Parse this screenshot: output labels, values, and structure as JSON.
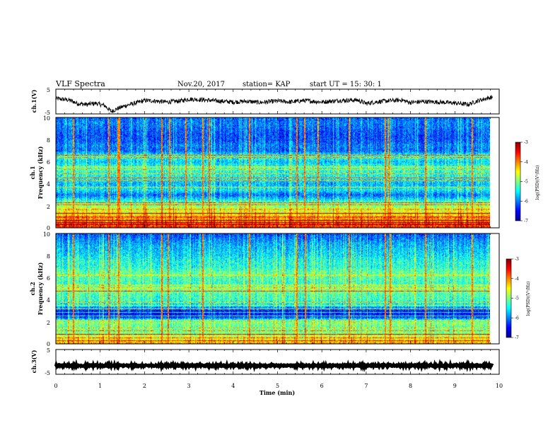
{
  "header": {
    "title": "VLF Spectra",
    "date": "Nov.20, 2017",
    "station": "station= KAP",
    "start": "start  UT  =   15: 30: 1"
  },
  "colorbar_ticks": [
    "-3",
    "-4",
    "-5",
    "-6",
    "-7"
  ],
  "colorbar_label_html": "log(PSD)(V<tspan baseline-shift='super' font-size='4'>2</tspan>/Hz)",
  "colors": {
    "background": "#ffffff",
    "trace": "#000000",
    "colormap": [
      "#00008f",
      "#0000ff",
      "#0080ff",
      "#00ffff",
      "#80ff80",
      "#ffff00",
      "#ff8000",
      "#ff0000",
      "#800000"
    ]
  },
  "chart_data": [
    {
      "id": "ch1-waveform",
      "type": "line",
      "ylabel": "ch.1(V)",
      "yticks": [
        "5",
        "-5"
      ],
      "ylim": [
        -5,
        5
      ],
      "xlim": [
        0,
        10
      ],
      "x_end": 9.85,
      "trend": [
        [
          0.0,
          1.2
        ],
        [
          0.3,
          0.6
        ],
        [
          0.5,
          -0.8
        ],
        [
          0.7,
          -1.2
        ],
        [
          0.9,
          -0.7
        ],
        [
          1.1,
          -1.6
        ],
        [
          1.25,
          -4.0
        ],
        [
          1.4,
          -2.8
        ],
        [
          1.6,
          -1.5
        ],
        [
          1.8,
          -0.6
        ],
        [
          2.0,
          0.4
        ],
        [
          2.2,
          0.3
        ],
        [
          2.5,
          -0.2
        ],
        [
          2.8,
          0.2
        ],
        [
          3.0,
          1.0
        ],
        [
          3.3,
          0.7
        ],
        [
          3.6,
          0.3
        ],
        [
          4.0,
          -0.2
        ],
        [
          4.3,
          0.1
        ],
        [
          4.6,
          -0.4
        ],
        [
          5.0,
          0.2
        ],
        [
          5.3,
          -0.2
        ],
        [
          5.6,
          0.4
        ],
        [
          6.0,
          -0.2
        ],
        [
          6.4,
          0.4
        ],
        [
          6.8,
          0.6
        ],
        [
          7.0,
          -0.8
        ],
        [
          7.2,
          -0.2
        ],
        [
          7.5,
          0.3
        ],
        [
          7.8,
          0.6
        ],
        [
          8.0,
          -0.4
        ],
        [
          8.3,
          0.0
        ],
        [
          8.7,
          -0.3
        ],
        [
          9.0,
          -0.6
        ],
        [
          9.3,
          -1.2
        ],
        [
          9.5,
          0.2
        ],
        [
          9.7,
          1.2
        ],
        [
          9.85,
          1.8
        ]
      ],
      "noise_amplitude": 0.9
    },
    {
      "id": "ch1-spectrogram",
      "type": "heatmap",
      "ylabel": "ch.1",
      "ylabel2": "Frequency  (kHz)",
      "yticks": [
        "10",
        "8",
        "6",
        "4",
        "2",
        "0"
      ],
      "ylim": [
        0,
        10
      ],
      "xlim": [
        0,
        10
      ],
      "x_end": 9.85,
      "colorbar": {
        "min": -7,
        "max": -3,
        "label": "log(PSD)(V²/Hz)"
      },
      "profile": [
        [
          0.0,
          -3.6
        ],
        [
          0.5,
          -3.9
        ],
        [
          1.0,
          -4.2
        ],
        [
          1.5,
          -4.6
        ],
        [
          2.0,
          -4.9
        ],
        [
          2.5,
          -5.4
        ],
        [
          3.0,
          -6.1
        ],
        [
          3.5,
          -5.5
        ],
        [
          4.0,
          -5.8
        ],
        [
          4.5,
          -5.5
        ],
        [
          5.0,
          -5.4
        ],
        [
          5.5,
          -5.3
        ],
        [
          6.0,
          -5.7
        ],
        [
          6.5,
          -5.3
        ],
        [
          7.0,
          -6.1
        ],
        [
          7.5,
          -6.0
        ],
        [
          8.0,
          -6.2
        ],
        [
          8.5,
          -6.2
        ],
        [
          9.0,
          -6.1
        ],
        [
          9.5,
          -6.0
        ],
        [
          10.0,
          -6.1
        ]
      ],
      "lines": [
        0.35,
        0.5,
        0.7,
        1.0,
        1.35,
        1.7,
        2.1,
        2.3,
        3.7,
        4.3,
        4.55,
        4.95,
        5.3,
        5.55,
        6.4,
        6.6
      ],
      "spikes": [
        0.38,
        1.18,
        1.39,
        1.42,
        2.38,
        2.55,
        2.92,
        3.3,
        3.45,
        4.35,
        5.42,
        5.6,
        5.9,
        6.6,
        7.42,
        7.5,
        8.32,
        9.38
      ]
    },
    {
      "id": "ch2-spectrogram",
      "type": "heatmap",
      "ylabel": "ch.2",
      "ylabel2": "Frequency  (kHz)",
      "yticks": [
        "10",
        "8",
        "6",
        "4",
        "2",
        "0"
      ],
      "ylim": [
        0,
        10
      ],
      "xlim": [
        0,
        10
      ],
      "x_end": 9.85,
      "colorbar": {
        "min": -7,
        "max": -3,
        "label": "log(PSD)(V²/Hz)"
      },
      "profile": [
        [
          0.0,
          -4.1
        ],
        [
          0.5,
          -4.6
        ],
        [
          1.0,
          -5.0
        ],
        [
          1.5,
          -5.2
        ],
        [
          2.0,
          -4.9
        ],
        [
          2.5,
          -6.4
        ],
        [
          3.0,
          -6.5
        ],
        [
          3.5,
          -5.6
        ],
        [
          4.0,
          -5.3
        ],
        [
          4.5,
          -5.2
        ],
        [
          5.0,
          -5.0
        ],
        [
          5.5,
          -5.3
        ],
        [
          6.0,
          -5.2
        ],
        [
          6.5,
          -5.1
        ],
        [
          7.0,
          -5.4
        ],
        [
          7.5,
          -5.4
        ],
        [
          8.0,
          -5.6
        ],
        [
          8.5,
          -5.7
        ],
        [
          9.0,
          -5.8
        ],
        [
          9.5,
          -6.0
        ],
        [
          10.0,
          -6.2
        ]
      ],
      "lines": [
        0.3,
        0.6,
        0.9,
        1.2,
        1.45,
        2.2,
        2.55,
        2.9,
        3.2,
        3.5,
        3.8,
        4.8,
        5.1,
        5.35,
        6.25
      ],
      "spikes": [
        0.38,
        1.18,
        1.4,
        2.38,
        2.52,
        3.3,
        4.35,
        5.42,
        5.62,
        6.6,
        7.42,
        7.52,
        8.32,
        9.38
      ]
    },
    {
      "id": "ch3-waveform",
      "type": "line",
      "ylabel": "ch.3(V)",
      "yticks": [
        "5",
        "-5"
      ],
      "ylim": [
        -5,
        5
      ],
      "xlim": [
        0,
        10
      ],
      "x_end": 9.85,
      "trend": [
        [
          0.0,
          -1.5
        ],
        [
          9.85,
          -1.5
        ]
      ],
      "noise_amplitude": 0.3
    }
  ],
  "xaxis": {
    "label": "Time  (min)",
    "ticks": [
      "0",
      "1",
      "2",
      "3",
      "4",
      "5",
      "6",
      "7",
      "8",
      "9",
      "10"
    ],
    "range": [
      0,
      10
    ]
  }
}
